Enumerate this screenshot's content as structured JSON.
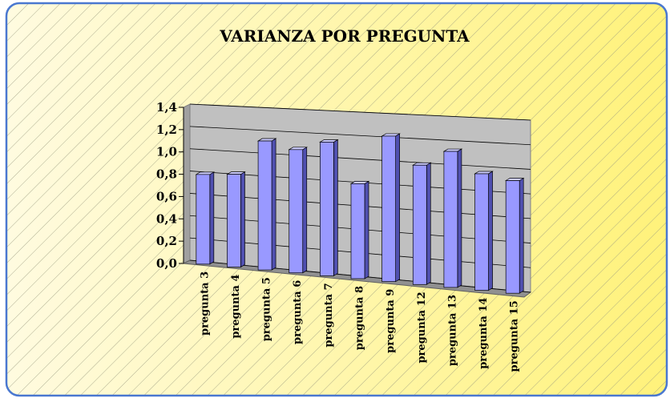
{
  "chart_data": {
    "type": "bar3d",
    "title": "VARIANZA  POR PREGUNTA",
    "categories": [
      "pregunta 3",
      "pregunta 4",
      "pregunta 5",
      "pregunta 6",
      "pregunta 7",
      "pregunta 8",
      "pregunta 9",
      "pregunta 12",
      "pregunta 13",
      "pregunta 14",
      "pregunta 15"
    ],
    "values": [
      0.8,
      0.82,
      1.13,
      1.07,
      1.15,
      0.81,
      1.23,
      1.0,
      1.13,
      0.96,
      0.92
    ],
    "color": "#9999ff",
    "ylim": [
      0,
      1.4
    ],
    "yticks": [
      {
        "value": 0,
        "label": "0,0"
      },
      {
        "value": 0.2,
        "label": "0,2"
      },
      {
        "value": 0.4,
        "label": "0,4"
      },
      {
        "value": 0.6,
        "label": "0,6"
      },
      {
        "value": 0.8,
        "label": "0,8"
      },
      {
        "value": 1.0,
        "label": "1,0"
      },
      {
        "value": 1.2,
        "label": "1,2"
      },
      {
        "value": 1.4,
        "label": "1,4"
      }
    ],
    "grid": true
  }
}
